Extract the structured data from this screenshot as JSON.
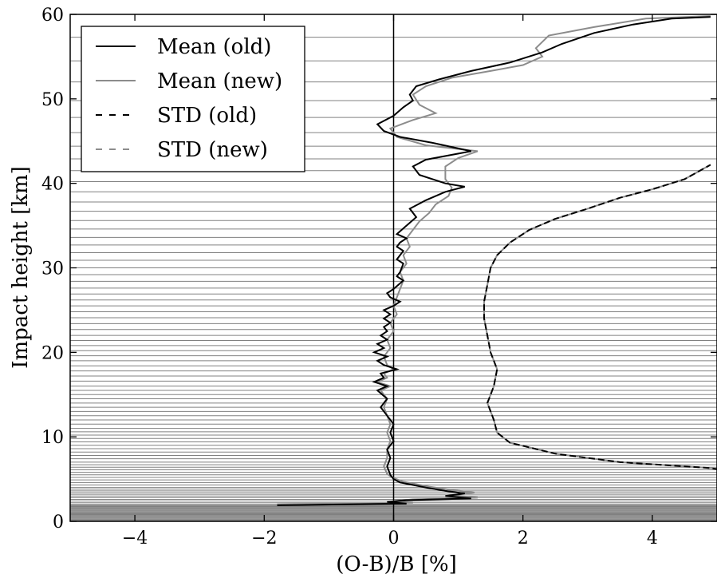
{
  "chart_data": {
    "type": "line",
    "xlabel": "(O-B)/B [%]",
    "ylabel": "Impact height [km]",
    "xlim": [
      -5,
      5
    ],
    "ylim": [
      0,
      60
    ],
    "xticks": [
      -4,
      -2,
      0,
      2,
      4
    ],
    "xtick_labels": [
      "−4",
      "−2",
      "0",
      "2",
      "4"
    ],
    "yticks": [
      0,
      10,
      20,
      30,
      40,
      50,
      60
    ],
    "ytick_labels": [
      "0",
      "10",
      "20",
      "30",
      "40",
      "50",
      "60"
    ],
    "legend_position": "top-left",
    "grid": false,
    "reference_lines": {
      "vertical_at_x": 0,
      "horizontal_levels_km": [
        0.1,
        0.2,
        0.3,
        0.4,
        0.5,
        0.6,
        0.7,
        0.8,
        0.9,
        1.0,
        1.1,
        1.2,
        1.3,
        1.4,
        1.5,
        1.6,
        1.7,
        1.8,
        1.9,
        2.0,
        2.2,
        2.4,
        2.6,
        2.8,
        3.0,
        3.2,
        3.4,
        3.6,
        3.8,
        4.0,
        4.3,
        4.6,
        4.9,
        5.2,
        5.5,
        5.8,
        6.1,
        6.4,
        6.7,
        7.0,
        7.4,
        7.8,
        8.2,
        8.6,
        9.0,
        9.4,
        9.8,
        10.2,
        10.6,
        11.0,
        11.5,
        12.0,
        12.5,
        13.0,
        13.5,
        14.0,
        14.5,
        15.0,
        15.5,
        16.0,
        16.6,
        17.2,
        17.8,
        18.4,
        19.0,
        19.6,
        20.2,
        20.8,
        21.4,
        22.0,
        22.7,
        23.4,
        24.1,
        24.8,
        25.5,
        26.2,
        26.9,
        27.6,
        28.4,
        29.2,
        30.0,
        30.9,
        31.8,
        32.7,
        33.6,
        34.6,
        35.6,
        36.7,
        37.8,
        39.0,
        40.2,
        41.5,
        42.9,
        44.4,
        46.0,
        47.8,
        49.8,
        52.0,
        54.5,
        57.3,
        60.0
      ],
      "color": "#808080"
    },
    "series": [
      {
        "name": "Mean (old)",
        "color": "#000000",
        "dash": "solid",
        "points": [
          [
            -1.8,
            1.9
          ],
          [
            0.2,
            2.1
          ],
          [
            -0.1,
            2.3
          ],
          [
            0.2,
            2.5
          ],
          [
            1.2,
            2.7
          ],
          [
            0.8,
            3.0
          ],
          [
            1.1,
            3.3
          ],
          [
            0.8,
            3.6
          ],
          [
            0.5,
            4.0
          ],
          [
            0.1,
            4.6
          ],
          [
            0.0,
            5.0
          ],
          [
            -0.05,
            5.5
          ],
          [
            -0.1,
            6.5
          ],
          [
            -0.05,
            7.5
          ],
          [
            -0.1,
            8.5
          ],
          [
            0.0,
            9.5
          ],
          [
            -0.05,
            10.5
          ],
          [
            0.0,
            11.5
          ],
          [
            -0.1,
            12.5
          ],
          [
            -0.2,
            13.5
          ],
          [
            -0.1,
            14.5
          ],
          [
            -0.25,
            15.5
          ],
          [
            -0.1,
            16.0
          ],
          [
            -0.3,
            16.5
          ],
          [
            -0.15,
            17.0
          ],
          [
            -0.2,
            17.5
          ],
          [
            0.05,
            18.0
          ],
          [
            -0.15,
            18.5
          ],
          [
            -0.25,
            19.0
          ],
          [
            -0.1,
            19.5
          ],
          [
            -0.3,
            20.0
          ],
          [
            -0.15,
            20.5
          ],
          [
            -0.25,
            21.0
          ],
          [
            -0.1,
            21.5
          ],
          [
            -0.2,
            22.0
          ],
          [
            -0.1,
            22.5
          ],
          [
            -0.15,
            23.0
          ],
          [
            -0.05,
            23.5
          ],
          [
            -0.15,
            24.0
          ],
          [
            -0.05,
            24.5
          ],
          [
            -0.15,
            25.0
          ],
          [
            0.0,
            25.5
          ],
          [
            0.1,
            26.0
          ],
          [
            -0.05,
            26.5
          ],
          [
            -0.1,
            27.0
          ],
          [
            0.0,
            27.5
          ],
          [
            0.15,
            28.5
          ],
          [
            0.05,
            29.0
          ],
          [
            0.1,
            29.5
          ],
          [
            0.15,
            30.5
          ],
          [
            0.05,
            31.0
          ],
          [
            0.1,
            31.5
          ],
          [
            0.15,
            32.0
          ],
          [
            0.05,
            32.5
          ],
          [
            0.1,
            33.0
          ],
          [
            0.2,
            33.5
          ],
          [
            0.05,
            34.0
          ],
          [
            0.2,
            35.0
          ],
          [
            0.35,
            36.0
          ],
          [
            0.25,
            37.0
          ],
          [
            0.5,
            38.0
          ],
          [
            0.8,
            39.0
          ],
          [
            1.1,
            39.6
          ],
          [
            0.8,
            40.0
          ],
          [
            0.4,
            41.0
          ],
          [
            0.3,
            42.0
          ],
          [
            0.5,
            42.8
          ],
          [
            1.2,
            43.8
          ],
          [
            0.6,
            44.8
          ],
          [
            0.1,
            45.5
          ],
          [
            -0.15,
            46.2
          ],
          [
            -0.25,
            47.0
          ],
          [
            0.0,
            48.0
          ],
          [
            0.15,
            49.0
          ],
          [
            0.3,
            49.8
          ],
          [
            0.25,
            50.5
          ],
          [
            0.35,
            51.5
          ],
          [
            0.7,
            52.3
          ],
          [
            1.2,
            53.3
          ],
          [
            1.8,
            54.3
          ],
          [
            2.3,
            55.5
          ],
          [
            2.6,
            56.5
          ],
          [
            3.1,
            57.8
          ],
          [
            3.7,
            58.8
          ],
          [
            4.3,
            59.5
          ],
          [
            4.9,
            59.7
          ]
        ]
      },
      {
        "name": "Mean (new)",
        "color": "#8c8c8c",
        "dash": "solid",
        "points": [
          [
            -1.8,
            2.0
          ],
          [
            0.3,
            2.2
          ],
          [
            0.0,
            2.4
          ],
          [
            0.3,
            2.6
          ],
          [
            1.3,
            2.8
          ],
          [
            0.9,
            3.1
          ],
          [
            1.25,
            3.4
          ],
          [
            0.9,
            3.7
          ],
          [
            0.55,
            4.1
          ],
          [
            0.15,
            4.7
          ],
          [
            0.0,
            5.1
          ],
          [
            -0.1,
            5.6
          ],
          [
            -0.15,
            6.5
          ],
          [
            -0.1,
            7.5
          ],
          [
            -0.1,
            8.5
          ],
          [
            -0.05,
            9.5
          ],
          [
            -0.1,
            10.5
          ],
          [
            -0.05,
            11.5
          ],
          [
            -0.1,
            12.5
          ],
          [
            -0.15,
            13.5
          ],
          [
            -0.1,
            14.5
          ],
          [
            -0.2,
            15.5
          ],
          [
            -0.05,
            16.0
          ],
          [
            -0.25,
            16.5
          ],
          [
            -0.1,
            17.0
          ],
          [
            -0.15,
            17.5
          ],
          [
            0.0,
            18.0
          ],
          [
            -0.1,
            18.5
          ],
          [
            -0.15,
            19.5
          ],
          [
            -0.05,
            20.5
          ],
          [
            -0.1,
            21.5
          ],
          [
            0.0,
            22.5
          ],
          [
            -0.05,
            23.5
          ],
          [
            0.05,
            24.5
          ],
          [
            0.0,
            25.5
          ],
          [
            0.05,
            26.5
          ],
          [
            0.1,
            27.5
          ],
          [
            0.15,
            28.5
          ],
          [
            0.1,
            29.5
          ],
          [
            0.2,
            30.5
          ],
          [
            0.15,
            31.5
          ],
          [
            0.25,
            32.5
          ],
          [
            0.2,
            33.5
          ],
          [
            0.3,
            34.5
          ],
          [
            0.4,
            35.5
          ],
          [
            0.55,
            36.5
          ],
          [
            0.65,
            37.5
          ],
          [
            0.85,
            38.5
          ],
          [
            0.9,
            39.5
          ],
          [
            0.8,
            40.5
          ],
          [
            0.8,
            42.0
          ],
          [
            1.0,
            43.0
          ],
          [
            1.3,
            43.8
          ],
          [
            0.5,
            44.5
          ],
          [
            0.05,
            45.5
          ],
          [
            -0.05,
            46.5
          ],
          [
            0.3,
            47.5
          ],
          [
            0.65,
            48.3
          ],
          [
            0.4,
            49.3
          ],
          [
            0.3,
            50.5
          ],
          [
            0.5,
            51.5
          ],
          [
            0.9,
            52.5
          ],
          [
            1.5,
            53.3
          ],
          [
            2.0,
            54.0
          ],
          [
            2.3,
            55.0
          ],
          [
            2.2,
            56.0
          ],
          [
            2.4,
            57.5
          ],
          [
            3.1,
            58.5
          ],
          [
            3.9,
            59.5
          ],
          [
            4.9,
            59.8
          ]
        ]
      },
      {
        "name": "STD (old)",
        "color": "#000000",
        "dash": "dashed",
        "points": [
          [
            9.0,
            3.0
          ],
          [
            6.0,
            5.0
          ],
          [
            4.9,
            6.3
          ],
          [
            3.5,
            7.0
          ],
          [
            2.5,
            8.0
          ],
          [
            1.8,
            9.3
          ],
          [
            1.6,
            10.5
          ],
          [
            1.55,
            12.0
          ],
          [
            1.45,
            14.0
          ],
          [
            1.55,
            16.0
          ],
          [
            1.6,
            18.0
          ],
          [
            1.5,
            20.0
          ],
          [
            1.45,
            22.0
          ],
          [
            1.4,
            24.0
          ],
          [
            1.4,
            26.0
          ],
          [
            1.45,
            28.0
          ],
          [
            1.5,
            30.0
          ],
          [
            1.6,
            31.5
          ],
          [
            1.8,
            33.0
          ],
          [
            2.1,
            34.5
          ],
          [
            2.5,
            35.8
          ],
          [
            3.0,
            37.0
          ],
          [
            3.5,
            38.3
          ],
          [
            4.0,
            39.3
          ],
          [
            4.5,
            40.5
          ],
          [
            4.9,
            42.2
          ]
        ]
      },
      {
        "name": "STD (new)",
        "color": "#8c8c8c",
        "dash": "dashed",
        "points": [
          [
            9.0,
            3.0
          ],
          [
            6.0,
            5.0
          ],
          [
            4.9,
            6.3
          ],
          [
            3.5,
            7.0
          ],
          [
            2.5,
            8.0
          ],
          [
            1.8,
            9.3
          ],
          [
            1.6,
            10.5
          ],
          [
            1.55,
            12.0
          ],
          [
            1.45,
            14.0
          ],
          [
            1.55,
            16.0
          ],
          [
            1.6,
            18.0
          ],
          [
            1.5,
            20.0
          ],
          [
            1.45,
            22.0
          ],
          [
            1.4,
            24.0
          ],
          [
            1.4,
            26.0
          ],
          [
            1.45,
            28.0
          ],
          [
            1.5,
            30.0
          ],
          [
            1.6,
            31.5
          ],
          [
            1.8,
            33.0
          ],
          [
            2.1,
            34.5
          ],
          [
            2.5,
            35.8
          ],
          [
            3.0,
            37.0
          ],
          [
            3.5,
            38.3
          ],
          [
            4.0,
            39.3
          ],
          [
            4.5,
            40.5
          ],
          [
            4.9,
            42.2
          ]
        ]
      }
    ]
  }
}
